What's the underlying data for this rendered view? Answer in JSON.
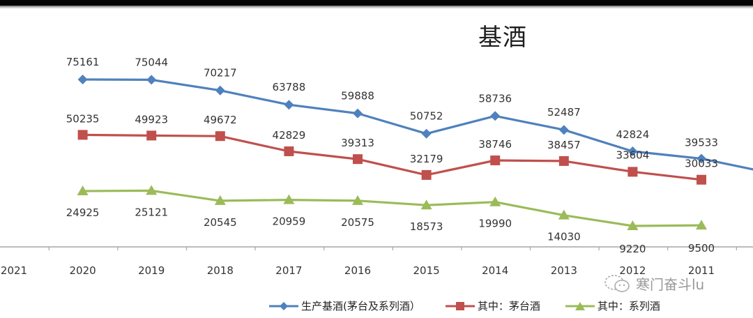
{
  "title": "基酒",
  "watermark": {
    "icon": "wechat-icon",
    "text": "寒门奋斗lu"
  },
  "legend": [
    {
      "label": "生产基酒(茅台及系列酒）",
      "color": "#4F81BD",
      "marker": "diamond"
    },
    {
      "label": "其中：茅台酒",
      "color": "#C0504D",
      "marker": "square"
    },
    {
      "label": "其中：系列酒",
      "color": "#9BBB59",
      "marker": "triangle"
    }
  ],
  "colors": {
    "blue": "#4F81BD",
    "red": "#C0504D",
    "green": "#9BBB59",
    "axis": "#A6A6A6",
    "text": "#333333"
  },
  "chart_data": {
    "type": "line",
    "title": "基酒",
    "xlabel": "",
    "ylabel": "",
    "grid": false,
    "legend_position": "bottom",
    "categories": [
      "2021",
      "2020",
      "2019",
      "2018",
      "2017",
      "2016",
      "2015",
      "2014",
      "2013",
      "2012",
      "2011"
    ],
    "series": [
      {
        "name": "生产基酒(茅台及系列酒）",
        "color": "#4F81BD",
        "marker": "diamond",
        "values": [
          null,
          75161,
          75044,
          70217,
          63788,
          59888,
          50752,
          58736,
          52487,
          42824,
          39533
        ]
      },
      {
        "name": "其中：茅台酒",
        "color": "#C0504D",
        "marker": "square",
        "values": [
          null,
          50235,
          49923,
          49672,
          42829,
          39313,
          32179,
          38746,
          38457,
          33604,
          30033
        ]
      },
      {
        "name": "其中：系列酒",
        "color": "#9BBB59",
        "marker": "triangle",
        "values": [
          null,
          24925,
          25121,
          20545,
          20959,
          20575,
          18573,
          19990,
          14030,
          9220,
          9500
        ]
      }
    ]
  }
}
